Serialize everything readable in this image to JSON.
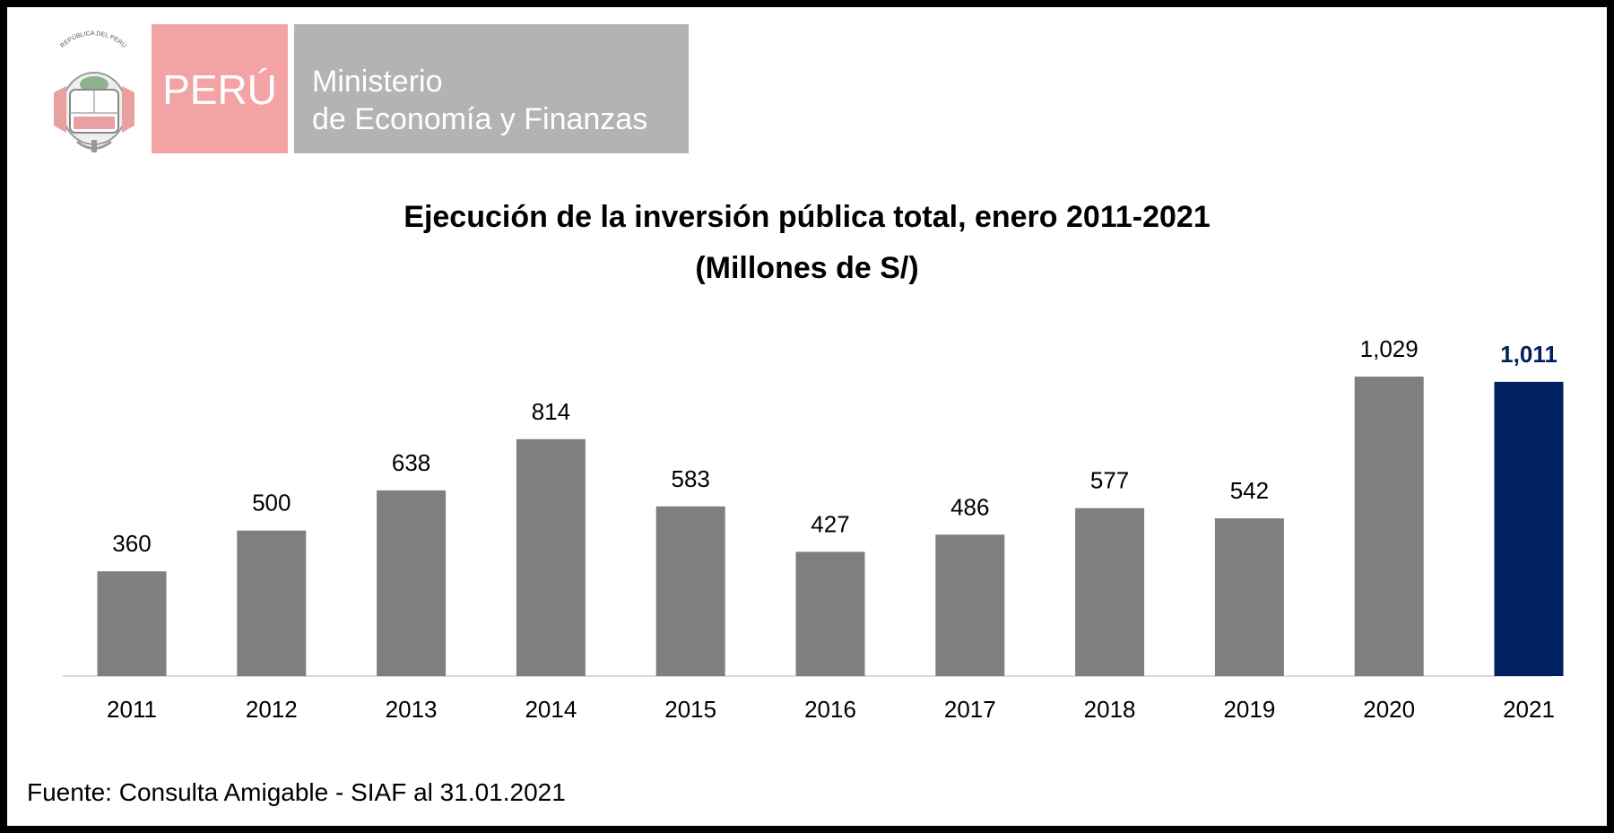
{
  "header": {
    "emblem_text": "REPÚBLICA DEL PERÚ",
    "country": "PERÚ",
    "ministry_line1": "Ministerio",
    "ministry_line2": "de Economía y Finanzas"
  },
  "source": "Fuente: Consulta Amigable - SIAF al 31.01.2021",
  "colors": {
    "bar_default": "#7f7f7f",
    "bar_highlight": "#002060",
    "peru_red": "#f4a3a5",
    "ministry_gray": "#b3b3b3",
    "axis_line": "#d9d9d9"
  },
  "chart_data": {
    "type": "bar",
    "title": "Ejecución de la inversión pública total, enero 2011-2021",
    "subtitle": "(Millones de S/)",
    "categories": [
      "2011",
      "2012",
      "2013",
      "2014",
      "2015",
      "2016",
      "2017",
      "2018",
      "2019",
      "2020",
      "2021"
    ],
    "values": [
      360,
      500,
      638,
      814,
      583,
      427,
      486,
      577,
      542,
      1029,
      1011
    ],
    "labels": [
      "360",
      "500",
      "638",
      "814",
      "583",
      "427",
      "486",
      "577",
      "542",
      "1,029",
      "1,011"
    ],
    "highlight_index": 10,
    "xlabel": "",
    "ylabel": "",
    "ylim": [
      0,
      1029
    ],
    "grid": false
  }
}
